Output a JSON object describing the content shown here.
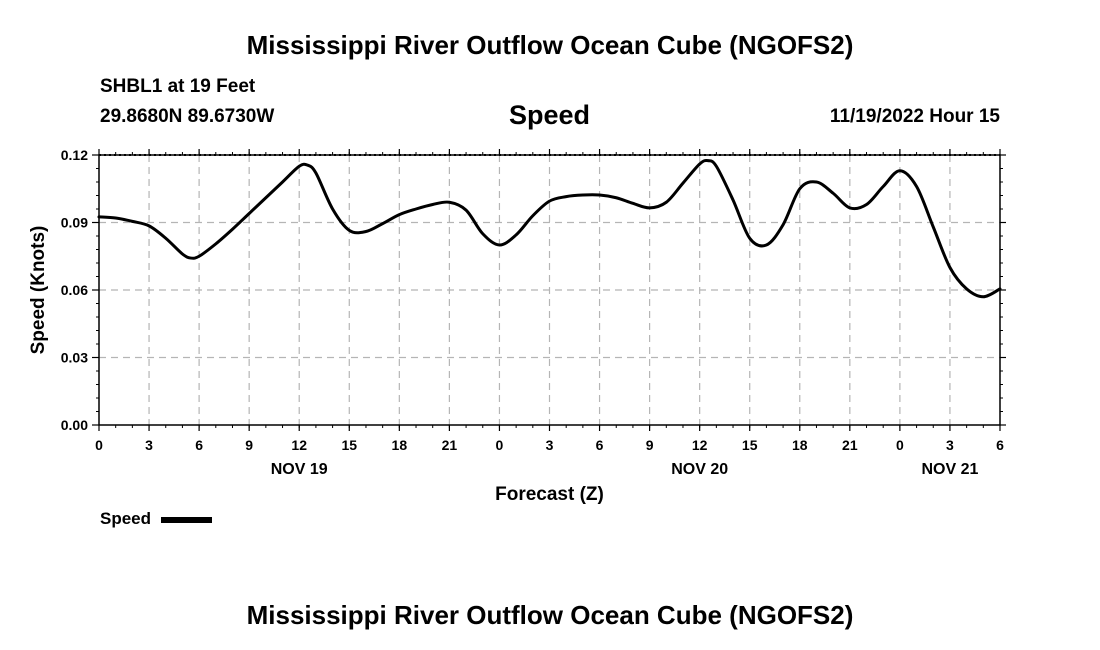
{
  "page": {
    "title": "Mississippi River Outflow Ocean Cube (NGOFS2)",
    "title_bottom": "Mississippi River Outflow Ocean Cube (NGOFS2)",
    "station": "SHBL1 at 19 Feet",
    "coords": "29.8680N  89.6730W",
    "variable": "Speed",
    "datetime": "11/19/2022 Hour 15",
    "legend_label": "Speed"
  },
  "chart_data": {
    "type": "line",
    "title": "Speed",
    "xlabel": "Forecast (Z)",
    "ylabel": "Speed (Knots)",
    "xlim": [
      0,
      54
    ],
    "ylim": [
      0,
      0.12
    ],
    "grid": true,
    "legend": "bottom-left",
    "x_tick_values": [
      0,
      3,
      6,
      9,
      12,
      15,
      18,
      21,
      24,
      27,
      30,
      33,
      36,
      39,
      42,
      45,
      48,
      51,
      54
    ],
    "x_tick_labels": [
      "0",
      "3",
      "6",
      "9",
      "12",
      "15",
      "18",
      "21",
      "0",
      "3",
      "6",
      "9",
      "12",
      "15",
      "18",
      "21",
      "0",
      "3",
      "6"
    ],
    "y_tick_values": [
      0,
      0.03,
      0.06,
      0.09,
      0.12
    ],
    "y_tick_labels": [
      "0.00",
      "0.03",
      "0.06",
      "0.09",
      "0.12"
    ],
    "day_labels": [
      {
        "x": 12,
        "label": "NOV 19"
      },
      {
        "x": 36,
        "label": "NOV 20"
      },
      {
        "x": 51,
        "label": "NOV 21"
      }
    ],
    "series": [
      {
        "name": "Speed",
        "color": "#000000",
        "x": [
          0,
          1,
          2,
          3,
          4,
          5,
          5.5,
          6,
          7,
          8,
          9,
          10,
          11,
          12,
          12.5,
          13,
          14,
          15,
          16,
          17,
          18,
          19,
          20,
          21,
          22,
          23,
          24,
          25,
          26,
          27,
          28,
          29,
          30,
          31,
          32,
          33,
          34,
          35,
          36,
          36.5,
          37,
          38,
          39,
          40,
          41,
          42,
          43,
          44,
          45,
          46,
          47,
          48,
          49,
          50,
          51,
          52,
          53,
          54
        ],
        "values": [
          0.0925,
          0.092,
          0.0905,
          0.0885,
          0.083,
          0.076,
          0.0742,
          0.075,
          0.0805,
          0.087,
          0.094,
          0.101,
          0.108,
          0.115,
          0.1155,
          0.112,
          0.096,
          0.0865,
          0.086,
          0.0895,
          0.0935,
          0.096,
          0.098,
          0.099,
          0.0955,
          0.085,
          0.08,
          0.0845,
          0.093,
          0.0995,
          0.1015,
          0.1022,
          0.1022,
          0.101,
          0.0985,
          0.0965,
          0.099,
          0.1075,
          0.116,
          0.1175,
          0.115,
          0.1,
          0.083,
          0.08,
          0.089,
          0.105,
          0.108,
          0.103,
          0.0965,
          0.098,
          0.106,
          0.113,
          0.106,
          0.088,
          0.07,
          0.0605,
          0.057,
          0.0605
        ]
      }
    ]
  }
}
